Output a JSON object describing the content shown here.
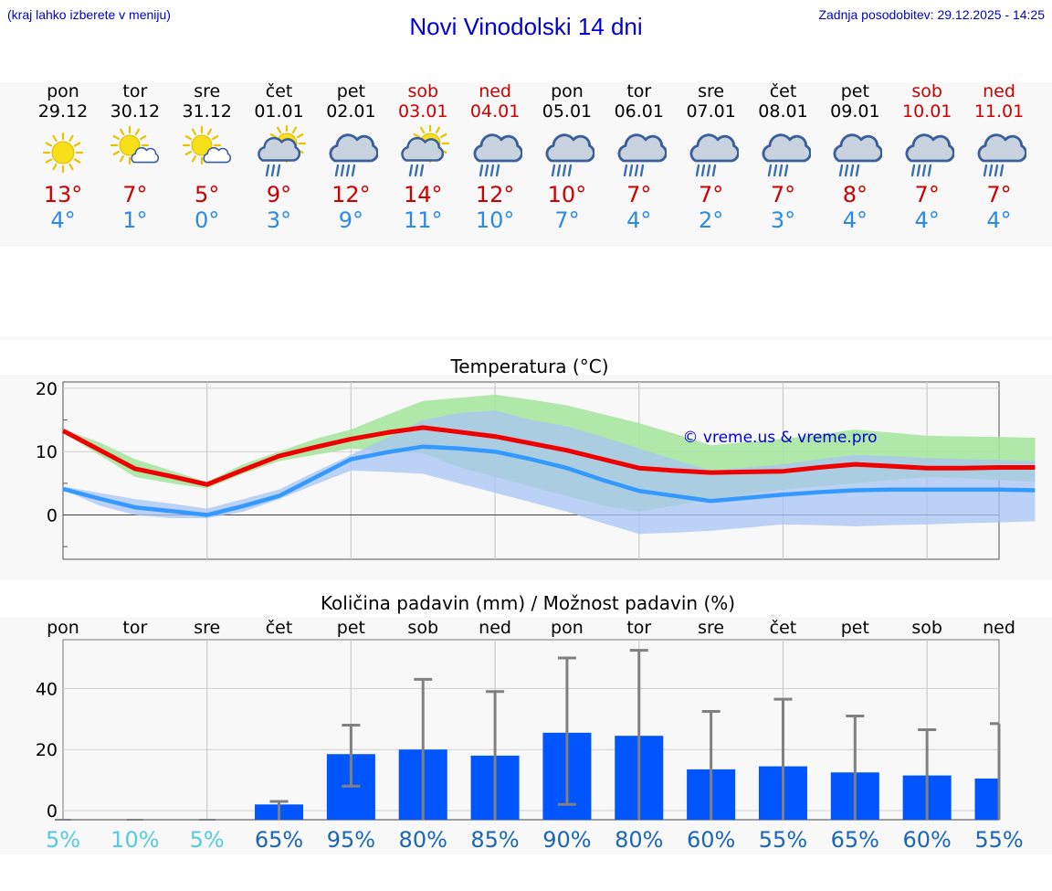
{
  "header": {
    "hint": "(kraj lahko izberete v meniju)",
    "title": "Novi Vinodolski 14 dni",
    "updated": "Zadnja posodobitev: 29.12.2025 - 14:25"
  },
  "colors": {
    "max": "#ee0000",
    "min": "#3399ff",
    "bar": "#0055ff",
    "weekend": "#cc0000",
    "band_max": "#a6e6a0",
    "band_min": "#a8c4f5",
    "band_overlap": "#80c8a8"
  },
  "days": [
    {
      "wd": "pon",
      "date": "29.12",
      "icon": "sun-icon",
      "tmax": "13°",
      "tmin": "4°",
      "weekend": false
    },
    {
      "wd": "tor",
      "date": "30.12",
      "icon": "sun-cloud-icon",
      "tmax": "7°",
      "tmin": "1°",
      "weekend": false
    },
    {
      "wd": "sre",
      "date": "31.12",
      "icon": "sun-cloud-icon",
      "tmax": "5°",
      "tmin": "0°",
      "weekend": false
    },
    {
      "wd": "čet",
      "date": "01.01",
      "icon": "sun-rain-icon",
      "tmax": "9°",
      "tmin": "3°",
      "weekend": false
    },
    {
      "wd": "pet",
      "date": "02.01",
      "icon": "rain-icon",
      "tmax": "12°",
      "tmin": "9°",
      "weekend": false
    },
    {
      "wd": "sob",
      "date": "03.01",
      "icon": "sun-rain-icon",
      "tmax": "14°",
      "tmin": "11°",
      "weekend": true
    },
    {
      "wd": "ned",
      "date": "04.01",
      "icon": "rain-icon",
      "tmax": "12°",
      "tmin": "10°",
      "weekend": true
    },
    {
      "wd": "pon",
      "date": "05.01",
      "icon": "rain-icon",
      "tmax": "10°",
      "tmin": "7°",
      "weekend": false
    },
    {
      "wd": "tor",
      "date": "06.01",
      "icon": "rain-icon",
      "tmax": "7°",
      "tmin": "4°",
      "weekend": false
    },
    {
      "wd": "sre",
      "date": "07.01",
      "icon": "rain-icon",
      "tmax": "7°",
      "tmin": "2°",
      "weekend": false
    },
    {
      "wd": "čet",
      "date": "08.01",
      "icon": "rain-icon",
      "tmax": "7°",
      "tmin": "3°",
      "weekend": false
    },
    {
      "wd": "pet",
      "date": "09.01",
      "icon": "rain-icon",
      "tmax": "8°",
      "tmin": "4°",
      "weekend": false
    },
    {
      "wd": "sob",
      "date": "10.01",
      "icon": "rain-icon",
      "tmax": "7°",
      "tmin": "4°",
      "weekend": true
    },
    {
      "wd": "ned",
      "date": "11.01",
      "icon": "rain-icon",
      "tmax": "7°",
      "tmin": "4°",
      "weekend": true
    }
  ],
  "chart_data": [
    {
      "type": "line",
      "title": "Temperatura (°C)",
      "watermark": "© vreme.us & vreme.pro",
      "ylim": [
        -7,
        21
      ],
      "yticks": [
        0,
        10,
        20
      ],
      "x": [
        0,
        0.5,
        1,
        1.5,
        2,
        2.5,
        3,
        3.5,
        4,
        4.5,
        5,
        5.5,
        6,
        6.5,
        7,
        7.5,
        8,
        8.5,
        9,
        9.5,
        10,
        10.5,
        11,
        11.5,
        12,
        12.5,
        13,
        13.5
      ],
      "series": [
        {
          "name": "max",
          "values": [
            13.3,
            10.3,
            7.3,
            6.1,
            4.8,
            7.1,
            9.3,
            10.7,
            12.0,
            13.0,
            13.8,
            13.1,
            12.4,
            11.3,
            10.2,
            8.8,
            7.4,
            7.0,
            6.7,
            6.8,
            6.9,
            7.5,
            8.0,
            7.7,
            7.4,
            7.4,
            7.5,
            7.5
          ]
        },
        {
          "name": "min",
          "values": [
            4.1,
            2.6,
            1.2,
            0.6,
            0.0,
            1.4,
            3.0,
            5.9,
            8.8,
            9.9,
            10.8,
            10.5,
            10.0,
            8.8,
            7.4,
            5.5,
            3.8,
            3.0,
            2.2,
            2.7,
            3.2,
            3.6,
            3.9,
            4.0,
            4.0,
            4.0,
            4.0,
            3.9
          ]
        }
      ],
      "max_band": {
        "lower": [
          13.0,
          9.5,
          6.0,
          5.0,
          4.2,
          6.5,
          8.5,
          9.5,
          10.5,
          10.0,
          9.8,
          7.5,
          6.0,
          4.5,
          3.0,
          1.5,
          0.5,
          1.5,
          2.5,
          3.2,
          4.0,
          4.5,
          5.0,
          5.5,
          6.0,
          5.8,
          5.5,
          5.2
        ],
        "upper": [
          13.5,
          11.5,
          8.8,
          7.0,
          5.2,
          8.0,
          10.0,
          12.0,
          13.5,
          15.8,
          18.0,
          18.5,
          19.0,
          18.2,
          17.3,
          15.9,
          14.5,
          12.8,
          11.0,
          11.5,
          12.0,
          12.7,
          13.5,
          13.0,
          12.5,
          12.4,
          12.3,
          12.2
        ]
      },
      "min_band": {
        "lower": [
          4.0,
          1.5,
          0.0,
          -0.5,
          -0.5,
          0.5,
          2.5,
          4.8,
          7.0,
          6.8,
          6.5,
          5.0,
          3.5,
          2.0,
          0.5,
          -1.3,
          -3.0,
          -2.8,
          -2.5,
          -2.0,
          -1.5,
          -1.6,
          -1.8,
          -1.6,
          -1.5,
          -1.3,
          -1.2,
          -1.0
        ],
        "upper": [
          4.5,
          3.5,
          2.5,
          1.8,
          1.0,
          2.5,
          4.0,
          6.8,
          9.5,
          12.2,
          15.0,
          16.1,
          16.5,
          15.0,
          14.0,
          12.3,
          10.5,
          8.7,
          7.0,
          7.5,
          8.0,
          8.8,
          9.5,
          9.3,
          9.0,
          8.8,
          8.7,
          8.5
        ]
      }
    },
    {
      "type": "bar",
      "title": "Količina padavin (mm) / Možnost padavin (%)",
      "ylim": [
        -3,
        56
      ],
      "yticks": [
        0,
        20,
        40
      ],
      "categories": [
        "pon",
        "tor",
        "sre",
        "čet",
        "pet",
        "sob",
        "ned",
        "pon",
        "tor",
        "sre",
        "čet",
        "pet",
        "sob",
        "ned"
      ],
      "values": [
        0,
        0,
        0,
        2,
        18.5,
        20,
        18,
        25.5,
        24.5,
        13.5,
        14.5,
        12.5,
        11.5,
        10.5
      ],
      "error_low": [
        0,
        0,
        0,
        0,
        8,
        0,
        0,
        2,
        0,
        0,
        0,
        0,
        0,
        0
      ],
      "error_high": [
        0,
        0,
        0,
        3,
        28,
        43,
        39,
        50,
        52.5,
        32.5,
        36.5,
        31,
        26.5,
        28.5
      ],
      "probability": [
        "5%",
        "10%",
        "5%",
        "65%",
        "95%",
        "80%",
        "85%",
        "90%",
        "80%",
        "60%",
        "55%",
        "65%",
        "60%",
        "55%"
      ]
    }
  ]
}
